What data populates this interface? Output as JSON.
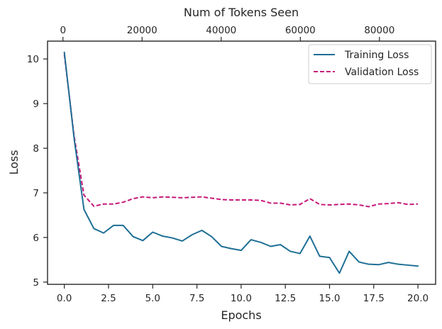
{
  "chart_data": {
    "type": "line",
    "xlabel": "Epochs",
    "ylabel": "Loss",
    "x2label": "Num of Tokens Seen",
    "xlim": [
      -0.95,
      21
    ],
    "ylim": [
      4.95,
      10.4
    ],
    "x2lim": [
      -3900,
      94200
    ],
    "x_ticks": [
      0.0,
      2.5,
      5.0,
      7.5,
      10.0,
      12.5,
      15.0,
      17.5,
      20.0
    ],
    "x_tick_labels": [
      "0.0",
      "2.5",
      "5.0",
      "7.5",
      "10.0",
      "12.5",
      "15.0",
      "17.5",
      "20.0"
    ],
    "y_ticks": [
      5,
      6,
      7,
      8,
      9,
      10
    ],
    "y_tick_labels": [
      "5",
      "6",
      "7",
      "8",
      "9",
      "10"
    ],
    "x2_ticks": [
      0,
      20000,
      40000,
      60000,
      80000
    ],
    "x2_tick_labels": [
      "0",
      "20000",
      "40000",
      "60000",
      "80000"
    ],
    "grid": false,
    "legend_position": "top-right",
    "x": [
      0.0,
      0.56,
      1.11,
      1.67,
      2.22,
      2.78,
      3.33,
      3.89,
      4.44,
      5.0,
      5.56,
      6.11,
      6.67,
      7.22,
      7.78,
      8.33,
      8.89,
      9.44,
      10.0,
      10.56,
      11.11,
      11.67,
      12.22,
      12.78,
      13.33,
      13.89,
      14.44,
      15.0,
      15.56,
      16.11,
      16.67,
      17.22,
      17.78,
      18.33,
      18.89,
      19.44,
      20.0
    ],
    "series": [
      {
        "name": "Training Loss",
        "color": "#1f6f95",
        "style": "solid",
        "values": [
          10.15,
          8.2,
          6.63,
          6.2,
          6.1,
          6.27,
          6.27,
          6.02,
          5.93,
          6.12,
          6.03,
          5.99,
          5.92,
          6.06,
          6.16,
          6.02,
          5.8,
          5.75,
          5.71,
          5.95,
          5.89,
          5.8,
          5.84,
          5.69,
          5.64,
          6.03,
          5.58,
          5.55,
          5.2,
          5.69,
          5.45,
          5.4,
          5.39,
          5.44,
          5.4,
          5.38,
          5.36
        ]
      },
      {
        "name": "Validation Loss",
        "color": "#c7187a",
        "style": "dashed",
        "values": [
          10.1,
          8.25,
          6.95,
          6.7,
          6.75,
          6.75,
          6.79,
          6.87,
          6.91,
          6.89,
          6.91,
          6.9,
          6.89,
          6.9,
          6.91,
          6.88,
          6.85,
          6.84,
          6.84,
          6.84,
          6.83,
          6.77,
          6.77,
          6.73,
          6.74,
          6.87,
          6.74,
          6.73,
          6.74,
          6.75,
          6.73,
          6.69,
          6.75,
          6.76,
          6.78,
          6.74,
          6.75
        ]
      }
    ]
  }
}
